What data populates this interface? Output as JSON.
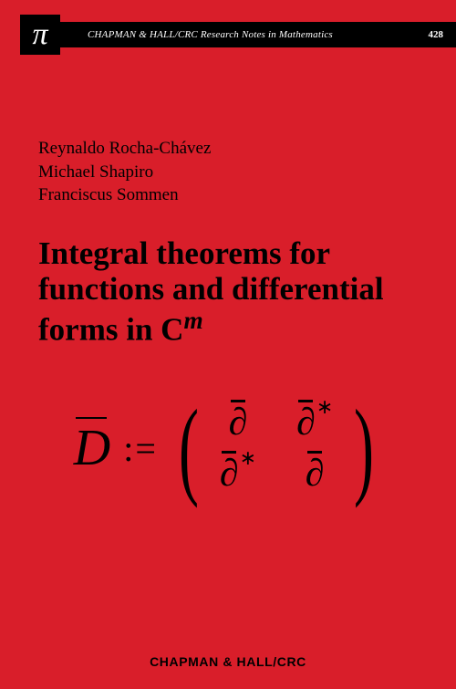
{
  "colors": {
    "background": "#d91e2a",
    "header_bg": "#000000",
    "header_text": "#ffffff",
    "body_text": "#000000"
  },
  "header": {
    "pi_symbol": "π",
    "series_name": "CHAPMAN & HALL/CRC Research Notes in Mathematics",
    "series_number": "428"
  },
  "authors": [
    "Reynaldo Rocha-Chávez",
    "Michael Shapiro",
    "Franciscus Sommen"
  ],
  "title": {
    "line_prefix": "Integral theorems for functions and differential forms in C",
    "superscript": "m"
  },
  "formula": {
    "lhs_symbol": "D",
    "assign": ":=",
    "matrix": {
      "rows": 2,
      "cols": 2,
      "entries": [
        {
          "base": "∂",
          "bar": true,
          "star": false
        },
        {
          "base": "∂",
          "bar": true,
          "star": true
        },
        {
          "base": "∂",
          "bar": true,
          "star": true
        },
        {
          "base": "∂",
          "bar": true,
          "star": false
        }
      ]
    },
    "font_size_entry": 42,
    "paren_scale": 120
  },
  "publisher": "CHAPMAN & HALL/CRC",
  "typography": {
    "author_fontsize": 19,
    "title_fontsize": 35,
    "title_fontweight": "bold",
    "publisher_fontsize": 14
  }
}
